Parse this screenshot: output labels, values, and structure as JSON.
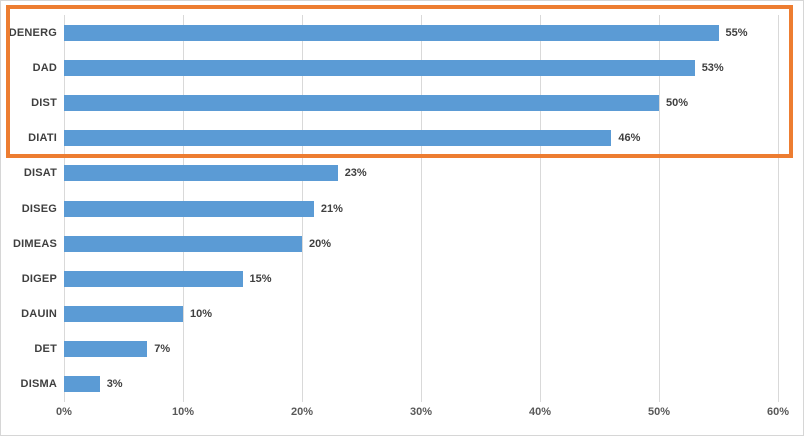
{
  "chart_data": {
    "type": "bar",
    "orientation": "horizontal",
    "title": "",
    "categories": [
      "DENERG",
      "DAD",
      "DIST",
      "DIATI",
      "DISAT",
      "DISEG",
      "DIMEAS",
      "DIGEP",
      "DAUIN",
      "DET",
      "DISMA"
    ],
    "values": [
      55,
      53,
      50,
      46,
      23,
      21,
      20,
      15,
      10,
      7,
      3
    ],
    "value_labels": [
      "55%",
      "53%",
      "50%",
      "46%",
      "23%",
      "21%",
      "20%",
      "15%",
      "10%",
      "7%",
      "3%"
    ],
    "xlabel": "",
    "ylabel": "",
    "x_ticks": [
      "0%",
      "10%",
      "20%",
      "30%",
      "40%",
      "50%",
      "60%"
    ],
    "x_tick_values": [
      0,
      10,
      20,
      30,
      40,
      50,
      60
    ],
    "xlim": [
      0,
      60
    ],
    "grid": "vertical",
    "legend": "none",
    "colors": {
      "bar": "#5b9bd5",
      "highlight_outline": "#ed7d31",
      "gridline": "#d9d9d9",
      "category_label": "#3f3f3f",
      "value_label": "#3f3f3f",
      "axis_tick": "#595959",
      "frame_border": "#d6d6d6"
    },
    "highlight": {
      "shape": "rectangle-outline",
      "color": "#ed7d31",
      "categories": [
        "DENERG",
        "DAD",
        "DIST",
        "DIATI"
      ]
    }
  }
}
